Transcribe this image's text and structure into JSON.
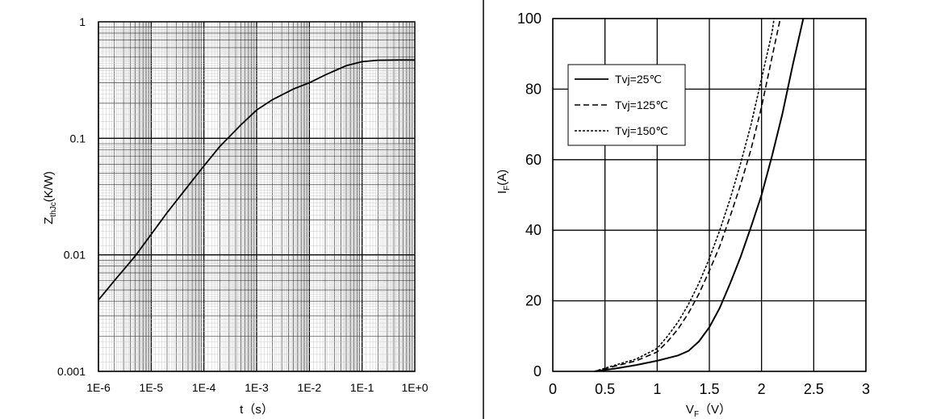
{
  "chart_data": [
    {
      "type": "line",
      "xscale": "log",
      "yscale": "log",
      "xlabel": "t（s）",
      "ylabel_main": "Z",
      "ylabel_sub": "thJc",
      "ylabel_tail": "(K/W)",
      "xlim": [
        1e-06,
        1
      ],
      "ylim": [
        0.001,
        1
      ],
      "x_ticks": [
        "1E-6",
        "1E-5",
        "1E-4",
        "1E-3",
        "1E-2",
        "1E-1",
        "1E+0"
      ],
      "y_ticks": [
        "0.001",
        "0.01",
        "0.1",
        "1"
      ],
      "grid": true,
      "series": [
        {
          "line_color": "#000000",
          "points": [
            [
              1e-06,
              0.0041
            ],
            [
              2e-06,
              0.006
            ],
            [
              5e-06,
              0.0098
            ],
            [
              1e-05,
              0.015
            ],
            [
              2e-05,
              0.023
            ],
            [
              5e-05,
              0.039
            ],
            [
              0.0001,
              0.058
            ],
            [
              0.0002,
              0.085
            ],
            [
              0.0005,
              0.13
            ],
            [
              0.001,
              0.175
            ],
            [
              0.002,
              0.215
            ],
            [
              0.005,
              0.265
            ],
            [
              0.01,
              0.3
            ],
            [
              0.02,
              0.35
            ],
            [
              0.05,
              0.42
            ],
            [
              0.1,
              0.455
            ],
            [
              0.2,
              0.468
            ],
            [
              0.5,
              0.47
            ],
            [
              1,
              0.47
            ]
          ]
        }
      ]
    },
    {
      "type": "line",
      "xlabel_main": "V",
      "xlabel_sub": "F",
      "xlabel_tail": "（V）",
      "ylabel_main": "I",
      "ylabel_sub": "F",
      "ylabel_tail": "(A)",
      "xlim": [
        0,
        3
      ],
      "ylim": [
        0,
        100
      ],
      "x_ticks": [
        "0",
        "0.5",
        "1",
        "1.5",
        "2",
        "2.5",
        "3"
      ],
      "y_ticks": [
        "0",
        "20",
        "40",
        "60",
        "80",
        "100"
      ],
      "grid": true,
      "legend_position": "top-left",
      "series": [
        {
          "name": "Tvj=25℃",
          "dash": "solid",
          "points": [
            [
              0.4,
              0
            ],
            [
              0.6,
              0.8
            ],
            [
              0.8,
              1.8
            ],
            [
              1.0,
              3.0
            ],
            [
              1.2,
              4.5
            ],
            [
              1.3,
              5.8
            ],
            [
              1.4,
              8.5
            ],
            [
              1.5,
              12.5
            ],
            [
              1.6,
              18
            ],
            [
              1.7,
              25
            ],
            [
              1.8,
              32.5
            ],
            [
              1.9,
              41
            ],
            [
              2.0,
              50
            ],
            [
              2.1,
              61
            ],
            [
              2.2,
              73
            ],
            [
              2.3,
              87
            ],
            [
              2.4,
              100
            ]
          ]
        },
        {
          "name": "Tvj=125℃",
          "dash": "long-dash",
          "points": [
            [
              0.4,
              0
            ],
            [
              0.6,
              1.5
            ],
            [
              0.8,
              3.0
            ],
            [
              1.0,
              5.5
            ],
            [
              1.1,
              8.5
            ],
            [
              1.2,
              12
            ],
            [
              1.3,
              16.5
            ],
            [
              1.4,
              22
            ],
            [
              1.5,
              28.5
            ],
            [
              1.6,
              35.5
            ],
            [
              1.7,
              44
            ],
            [
              1.8,
              53
            ],
            [
              1.9,
              63
            ],
            [
              2.0,
              75
            ],
            [
              2.1,
              89
            ],
            [
              2.18,
              100
            ]
          ]
        },
        {
          "name": "Tvj=150℃",
          "dash": "short-dash",
          "points": [
            [
              0.4,
              0
            ],
            [
              0.6,
              1.8
            ],
            [
              0.8,
              3.5
            ],
            [
              1.0,
              6.5
            ],
            [
              1.1,
              10
            ],
            [
              1.2,
              14
            ],
            [
              1.3,
              19
            ],
            [
              1.4,
              25
            ],
            [
              1.5,
              32
            ],
            [
              1.6,
              40
            ],
            [
              1.7,
              49
            ],
            [
              1.8,
              59
            ],
            [
              1.9,
              70
            ],
            [
              2.0,
              83
            ],
            [
              2.1,
              96
            ],
            [
              2.12,
              100
            ]
          ]
        }
      ]
    }
  ]
}
